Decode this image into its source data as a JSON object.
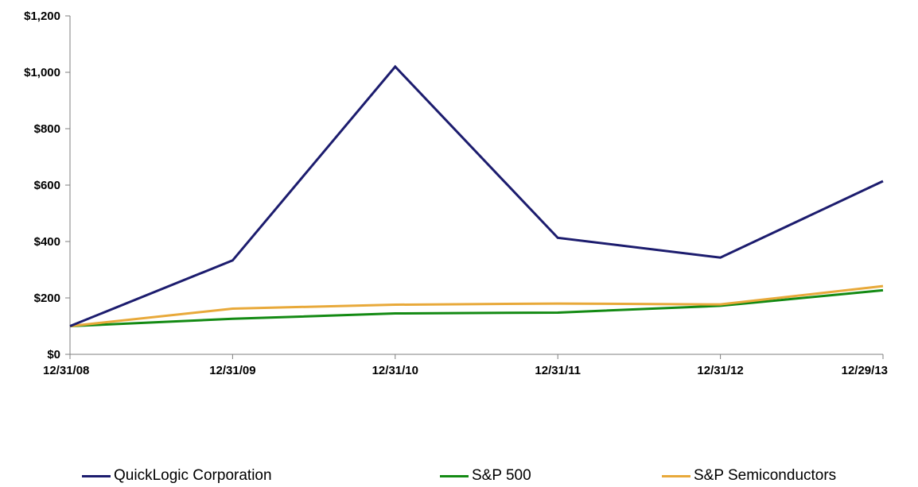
{
  "chart_data": {
    "type": "line",
    "categories": [
      "12/31/08",
      "12/31/09",
      "12/31/10",
      "12/31/11",
      "12/31/12",
      "12/29/13"
    ],
    "series": [
      {
        "name": "QuickLogic Corporation",
        "color": "#1c1c6e",
        "values": [
          100,
          333,
          1020,
          413,
          343,
          614
        ]
      },
      {
        "name": "S&P 500",
        "color": "#138a13",
        "values": [
          100,
          126,
          145,
          148,
          172,
          227
        ]
      },
      {
        "name": "S&P Semiconductors",
        "color": "#e8a93a",
        "values": [
          100,
          162,
          176,
          180,
          177,
          242
        ]
      }
    ],
    "y_ticks": [
      "$0",
      "$200",
      "$400",
      "$600",
      "$800",
      "$1,000",
      "$1,200"
    ],
    "y_tick_values": [
      0,
      200,
      400,
      600,
      800,
      1000,
      1200
    ],
    "ylim": [
      0,
      1200
    ],
    "grid": false,
    "legend_position": "bottom"
  }
}
